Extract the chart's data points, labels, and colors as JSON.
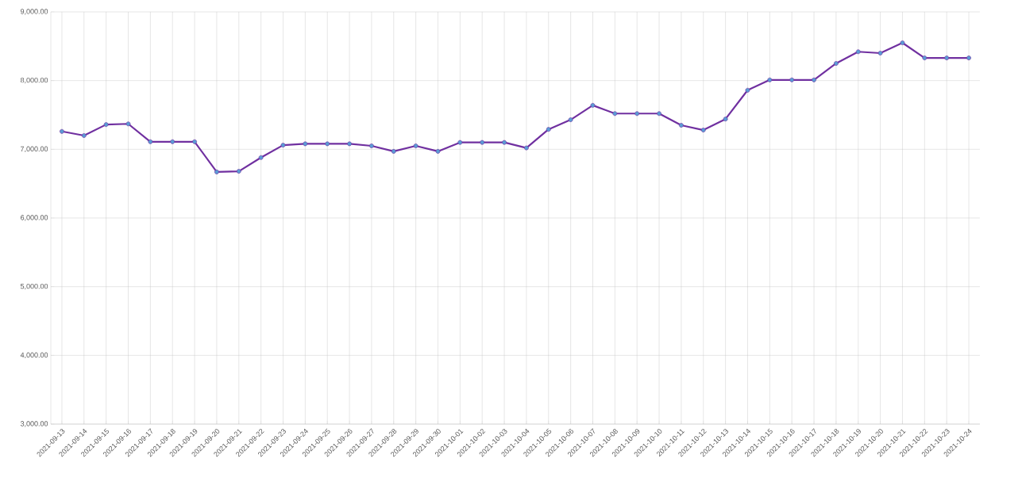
{
  "chart_data": {
    "type": "line",
    "categories": [
      "2021-09-13",
      "2021-09-14",
      "2021-09-15",
      "2021-09-16",
      "2021-09-17",
      "2021-09-18",
      "2021-09-19",
      "2021-09-20",
      "2021-09-21",
      "2021-09-22",
      "2021-09-23",
      "2021-09-24",
      "2021-09-25",
      "2021-09-26",
      "2021-09-27",
      "2021-09-28",
      "2021-09-29",
      "2021-09-30",
      "2021-10-01",
      "2021-10-02",
      "2021-10-03",
      "2021-10-04",
      "2021-10-05",
      "2021-10-06",
      "2021-10-07",
      "2021-10-08",
      "2021-10-09",
      "2021-10-10",
      "2021-10-11",
      "2021-10-12",
      "2021-10-13",
      "2021-10-14",
      "2021-10-15",
      "2021-10-16",
      "2021-10-17",
      "2021-10-18",
      "2021-10-19",
      "2021-10-20",
      "2021-10-21",
      "2021-10-22",
      "2021-10-23",
      "2021-10-24"
    ],
    "series": [
      {
        "color": "#7030a0",
        "values": [
          7260,
          7200,
          7360,
          7370,
          7110,
          7110,
          7110,
          6670,
          6680,
          6880,
          7060,
          7080,
          7080,
          7080,
          7050,
          6970,
          7050,
          6970,
          7100,
          7100,
          7100,
          7020,
          7290,
          7430,
          7640,
          7520,
          7520,
          7520,
          7350,
          7280,
          7440,
          7860,
          8010,
          8010,
          8010,
          8250,
          8420,
          8400,
          8550,
          8330,
          8330,
          8330
        ]
      }
    ],
    "ylim": [
      3000,
      9000
    ],
    "yticks": [
      {
        "value": 3000,
        "label": "3,000.00"
      },
      {
        "value": 4000,
        "label": "4,000.00"
      },
      {
        "value": 5000,
        "label": "5,000.00"
      },
      {
        "value": 6000,
        "label": "6,000.00"
      },
      {
        "value": 7000,
        "label": "7,000.00"
      },
      {
        "value": 8000,
        "label": "8,000.00"
      },
      {
        "value": 9000,
        "label": "9,000.00"
      }
    ],
    "grid": true,
    "marker": "circle",
    "line_style": "solid"
  }
}
